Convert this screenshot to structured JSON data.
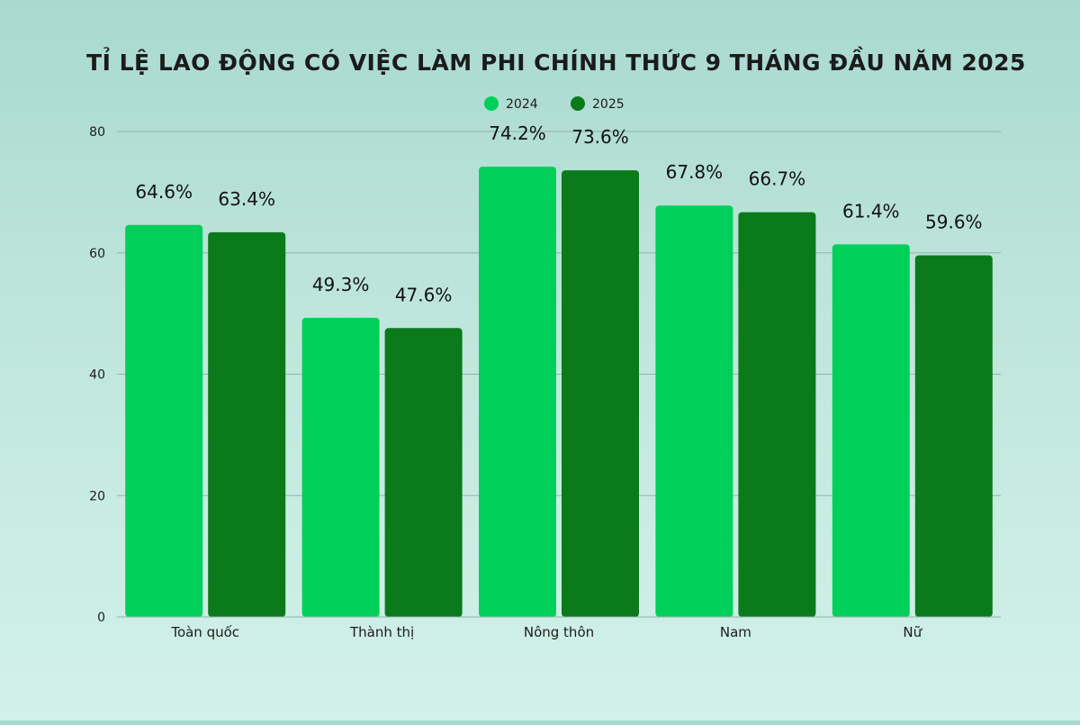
{
  "chart_data": {
    "type": "bar",
    "title": "TỈ LỆ LAO ĐỘNG CÓ VIỆC LÀM PHI CHÍNH THỨC 9 THÁNG ĐẦU NĂM 2025",
    "categories": [
      "Toàn quốc",
      "Thành thị",
      "Nông thôn",
      "Nam",
      "Nữ"
    ],
    "series": [
      {
        "name": "2024",
        "color": "#00d05a",
        "values": [
          64.6,
          49.3,
          74.2,
          67.8,
          61.4
        ],
        "labels": [
          "64.6%",
          "49.3%",
          "74.2%",
          "67.8%",
          "61.4%"
        ]
      },
      {
        "name": "2025",
        "color": "#0a7a1a",
        "values": [
          63.4,
          47.6,
          73.6,
          66.7,
          59.6
        ],
        "labels": [
          "63.4%",
          "47.6%",
          "73.6%",
          "66.7%",
          "59.6%"
        ]
      }
    ],
    "ylim": [
      0,
      80
    ],
    "yticks": [
      "0",
      "20",
      "40",
      "60",
      "80"
    ],
    "ytick_values": [
      0,
      20,
      40,
      60,
      80
    ],
    "grid": true,
    "legend_position": "top-center",
    "xlabel": "",
    "ylabel": ""
  }
}
